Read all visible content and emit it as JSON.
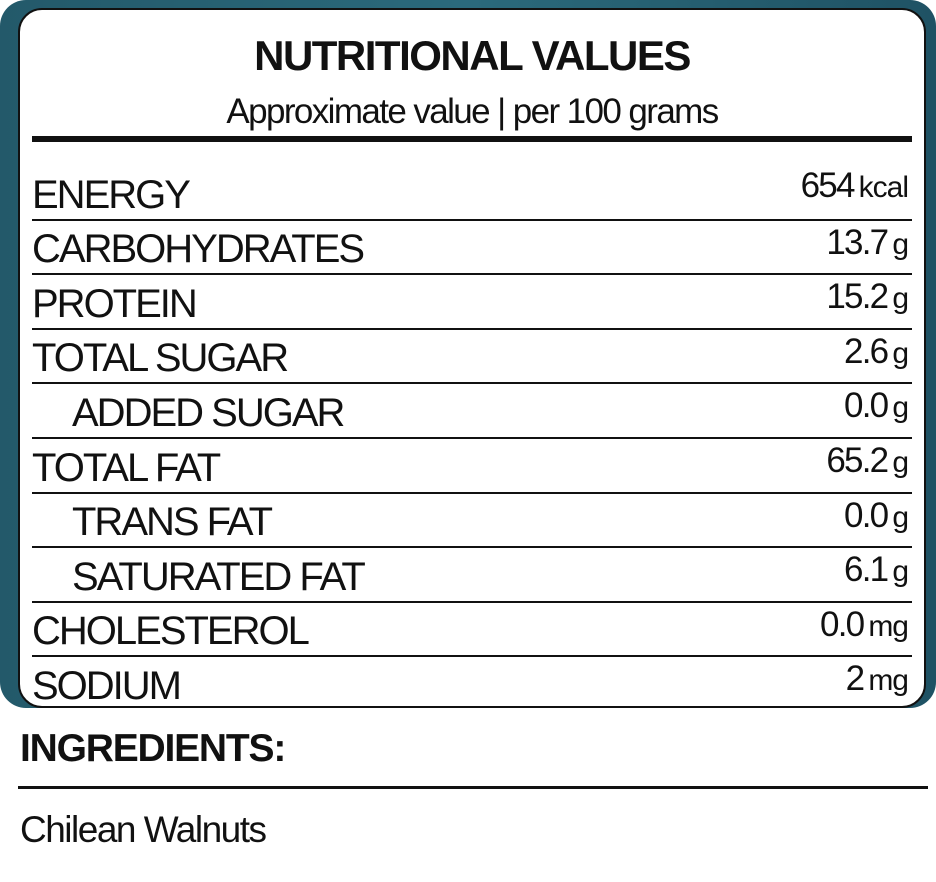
{
  "colors": {
    "frame": "#2b6a7c",
    "text": "#111111",
    "background": "#ffffff"
  },
  "label": {
    "title": "NUTRITIONAL VALUES",
    "subtitle": "Approximate value | per 100 grams",
    "rows": [
      {
        "name": "ENERGY",
        "value": "654",
        "unit": "kcal",
        "sub": false
      },
      {
        "name": "CARBOHYDRATES",
        "value": "13.7",
        "unit": "g",
        "sub": false
      },
      {
        "name": "PROTEIN",
        "value": "15.2",
        "unit": "g",
        "sub": false
      },
      {
        "name": "TOTAL SUGAR",
        "value": "2.6",
        "unit": "g",
        "sub": false
      },
      {
        "name": "ADDED SUGAR",
        "value": "0.0",
        "unit": "g",
        "sub": true
      },
      {
        "name": "TOTAL FAT",
        "value": "65.2",
        "unit": "g",
        "sub": false
      },
      {
        "name": "TRANS FAT",
        "value": "0.0",
        "unit": "g",
        "sub": true
      },
      {
        "name": "SATURATED FAT",
        "value": "6.1",
        "unit": "g",
        "sub": true
      },
      {
        "name": "CHOLESTEROL",
        "value": "0.0",
        "unit": "mg",
        "sub": false
      },
      {
        "name": "SODIUM",
        "value": "2",
        "unit": "mg",
        "sub": false
      }
    ]
  },
  "ingredients": {
    "heading": "INGREDIENTS:",
    "text": "Chilean Walnuts"
  }
}
